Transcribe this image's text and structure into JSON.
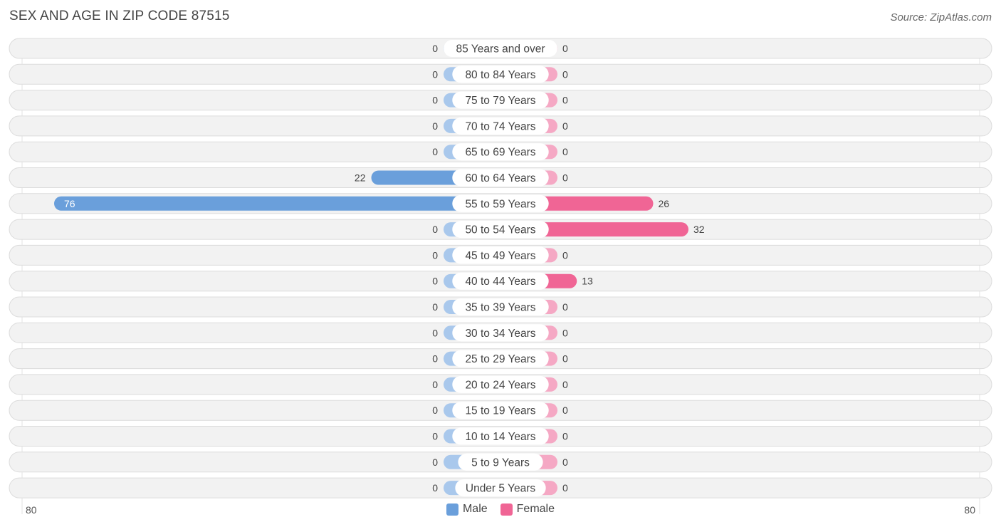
{
  "header": {
    "title": "SEX AND AGE IN ZIP CODE 87515",
    "source": "Source: ZipAtlas.com"
  },
  "axis": {
    "left_label": "80",
    "right_label": "80"
  },
  "legend": {
    "male_label": "Male",
    "female_label": "Female"
  },
  "colors": {
    "male": "#6a9fdb",
    "male_light": "#a9c8ec",
    "female": "#f06595",
    "female_light": "#f5a8c4",
    "row_bg": "#f2f2f2",
    "row_border": "#dcdcdc"
  },
  "chart_data": {
    "type": "bar",
    "orientation": "horizontal-diverging",
    "title": "SEX AND AGE IN ZIP CODE 87515",
    "xlim": [
      -80,
      80
    ],
    "categories": [
      "85 Years and over",
      "80 to 84 Years",
      "75 to 79 Years",
      "70 to 74 Years",
      "65 to 69 Years",
      "60 to 64 Years",
      "55 to 59 Years",
      "50 to 54 Years",
      "45 to 49 Years",
      "40 to 44 Years",
      "35 to 39 Years",
      "30 to 34 Years",
      "25 to 29 Years",
      "20 to 24 Years",
      "15 to 19 Years",
      "10 to 14 Years",
      "5 to 9 Years",
      "Under 5 Years"
    ],
    "series": [
      {
        "name": "Male",
        "values": [
          0,
          0,
          0,
          0,
          0,
          22,
          76,
          0,
          0,
          0,
          0,
          0,
          0,
          0,
          0,
          0,
          0,
          0
        ]
      },
      {
        "name": "Female",
        "values": [
          0,
          0,
          0,
          0,
          0,
          0,
          26,
          32,
          0,
          13,
          0,
          0,
          0,
          0,
          0,
          0,
          0,
          0
        ]
      }
    ],
    "legend_position": "bottom-center"
  }
}
